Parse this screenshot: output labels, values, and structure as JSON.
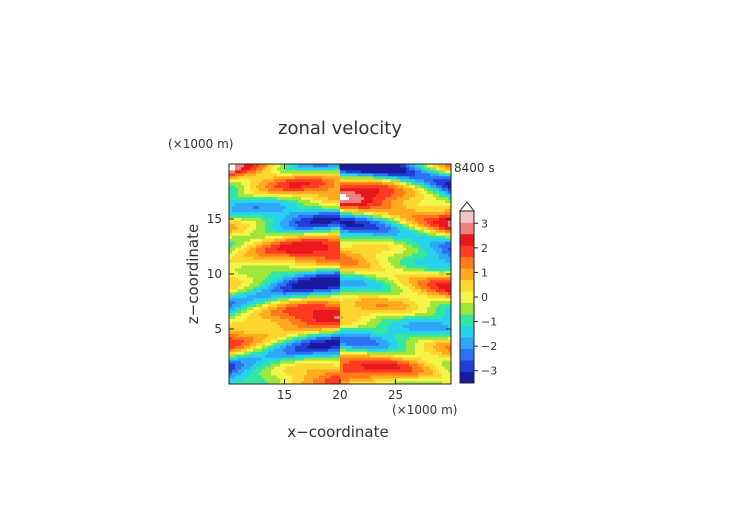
{
  "chart_data": {
    "type": "heatmap",
    "title": "zonal velocity",
    "xlabel": "x−coordinate",
    "ylabel": "z−coordinate",
    "x_unit": "(×1000 m)",
    "y_unit": "(×1000 m)",
    "time_label": "8400 s",
    "xlim": [
      10,
      30
    ],
    "ylim": [
      0,
      20
    ],
    "x_ticks": [
      15,
      20,
      25
    ],
    "y_ticks": [
      5,
      10,
      15
    ],
    "colorbar": {
      "ticks": [
        3,
        2,
        1,
        0,
        -1,
        -2,
        -3
      ],
      "range": [
        -3.5,
        3.5
      ],
      "colors": [
        "#1a1aa0",
        "#1f3fd8",
        "#2d72f0",
        "#2fa6f7",
        "#27d3ea",
        "#35e6a3",
        "#9fe63a",
        "#f4f54a",
        "#ffd530",
        "#ffab1f",
        "#ff7a1a",
        "#ff3b22",
        "#e8181e",
        "#f08080",
        "#f7c3c3"
      ],
      "extend_top": true
    },
    "grid": false
  }
}
